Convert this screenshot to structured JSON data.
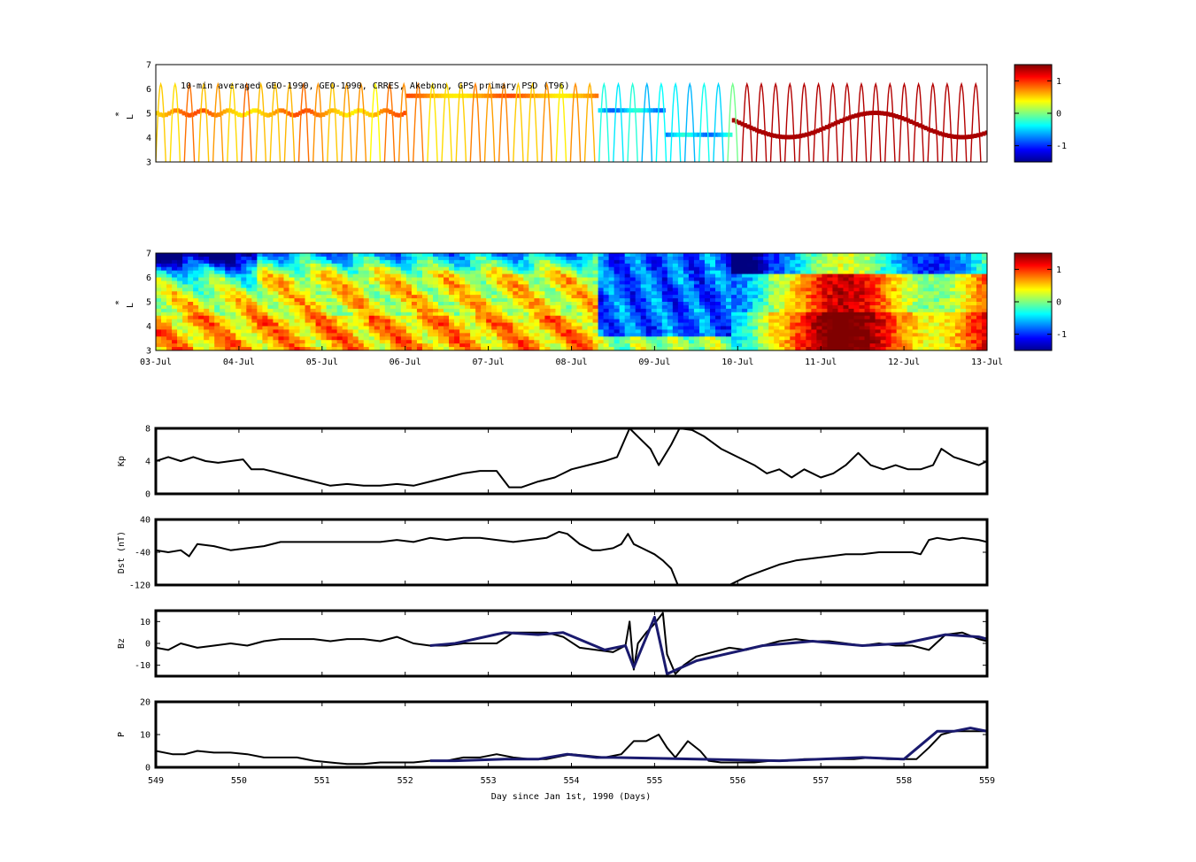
{
  "figure": {
    "annotation": "10-min averaged GEO-1990, GEO-1990, CRRES, Akebono, GPS  primary PSD (T96)"
  },
  "chart_data": [
    {
      "type": "heatmap",
      "id": "psd-observed",
      "ylabel": "L*",
      "ylabel_main": "L",
      "ylabel_sup": "*",
      "ylim": [
        3,
        7
      ],
      "yticks": [
        "3",
        "4",
        "5",
        "6",
        "7"
      ],
      "xlim": [
        549,
        559
      ],
      "colorbar": {
        "range": [
          -1.5,
          1.5
        ],
        "ticks": [
          "1",
          "0",
          "-1"
        ],
        "tick_values": [
          1,
          0,
          -1
        ]
      }
    },
    {
      "type": "heatmap",
      "id": "psd-reanalysis",
      "ylabel": "L*",
      "ylabel_main": "L",
      "ylabel_sup": "*",
      "ylim": [
        3,
        7
      ],
      "yticks": [
        "3",
        "4",
        "5",
        "6",
        "7"
      ],
      "xlim": [
        549,
        559
      ],
      "xticks": [
        "03-Jul",
        "04-Jul",
        "05-Jul",
        "06-Jul",
        "07-Jul",
        "08-Jul",
        "09-Jul",
        "10-Jul",
        "11-Jul",
        "12-Jul",
        "13-Jul"
      ],
      "colorbar": {
        "range": [
          -1.5,
          1.5
        ],
        "ticks": [
          "1",
          "0",
          "-1"
        ],
        "tick_values": [
          1,
          0,
          -1
        ]
      }
    },
    {
      "type": "line",
      "id": "kp",
      "ylabel": "Kp",
      "ylim": [
        0,
        8
      ],
      "yticks": [
        "0",
        "4",
        "8"
      ],
      "ytick_values": [
        0,
        4,
        8
      ],
      "xlim": [
        549,
        559
      ],
      "series": [
        {
          "color": "#000000",
          "x": [
            549.0,
            549.15,
            549.3,
            549.45,
            549.6,
            549.75,
            549.9,
            550.05,
            550.15,
            550.3,
            550.5,
            550.7,
            550.9,
            551.1,
            551.3,
            551.5,
            551.7,
            551.9,
            552.1,
            552.3,
            552.5,
            552.7,
            552.9,
            553.1,
            553.25,
            553.4,
            553.6,
            553.8,
            554.0,
            554.2,
            554.4,
            554.55,
            554.7,
            554.8,
            554.95,
            555.05,
            555.2,
            555.3,
            555.45,
            555.6,
            555.8,
            556.0,
            556.2,
            556.35,
            556.5,
            556.65,
            556.8,
            557.0,
            557.15,
            557.3,
            557.45,
            557.6,
            557.75,
            557.9,
            558.05,
            558.2,
            558.35,
            558.45,
            558.6,
            558.75,
            558.9,
            559.0
          ],
          "y": [
            4.0,
            4.5,
            4.0,
            4.5,
            4.0,
            3.8,
            4.0,
            4.2,
            3.0,
            3.0,
            2.5,
            2.0,
            1.5,
            1.0,
            1.2,
            1.0,
            1.0,
            1.2,
            1.0,
            1.5,
            2.0,
            2.5,
            2.8,
            2.8,
            0.8,
            0.8,
            1.5,
            2.0,
            3.0,
            3.5,
            4.0,
            4.5,
            8.0,
            7.0,
            5.5,
            3.5,
            6.0,
            8.0,
            7.8,
            7.0,
            5.5,
            4.5,
            3.5,
            2.5,
            3.0,
            2.0,
            3.0,
            2.0,
            2.5,
            3.5,
            5.0,
            3.5,
            3.0,
            3.5,
            3.0,
            3.0,
            3.5,
            5.5,
            4.5,
            4.0,
            3.5,
            4.0
          ]
        }
      ]
    },
    {
      "type": "line",
      "id": "dst",
      "ylabel": "Dst (nT)",
      "ylim": [
        -120,
        40
      ],
      "yticks": [
        "-120",
        "-40",
        "40"
      ],
      "ytick_values": [
        -120,
        -40,
        40
      ],
      "xlim": [
        549,
        559
      ],
      "series": [
        {
          "color": "#000000",
          "x": [
            549.0,
            549.15,
            549.3,
            549.4,
            549.5,
            549.7,
            549.9,
            550.1,
            550.3,
            550.5,
            550.7,
            550.9,
            551.1,
            551.3,
            551.5,
            551.7,
            551.9,
            552.1,
            552.3,
            552.5,
            552.7,
            552.9,
            553.1,
            553.3,
            553.5,
            553.7,
            553.85,
            553.95,
            554.1,
            554.25,
            554.35,
            554.5,
            554.6,
            554.68,
            554.75,
            554.85,
            555.0,
            555.1,
            555.2,
            555.28,
            555.5,
            555.7,
            555.9,
            556.1,
            556.3,
            556.5,
            556.7,
            556.9,
            557.1,
            557.3,
            557.5,
            557.7,
            557.9,
            558.1,
            558.2,
            558.3,
            558.4,
            558.55,
            558.7,
            558.9,
            559.0
          ],
          "y": [
            -35,
            -40,
            -35,
            -50,
            -20,
            -25,
            -35,
            -30,
            -25,
            -15,
            -15,
            -15,
            -15,
            -15,
            -15,
            -15,
            -10,
            -15,
            -5,
            -10,
            -5,
            -5,
            -10,
            -15,
            -10,
            -5,
            10,
            5,
            -20,
            -35,
            -35,
            -30,
            -20,
            5,
            -20,
            -30,
            -45,
            -60,
            -80,
            -120,
            -120,
            -120,
            -120,
            -100,
            -85,
            -70,
            -60,
            -55,
            -50,
            -45,
            -45,
            -40,
            -40,
            -40,
            -45,
            -10,
            -5,
            -10,
            -5,
            -10,
            -15
          ]
        }
      ]
    },
    {
      "type": "line",
      "id": "bz",
      "ylabel": "Bz",
      "ylim": [
        -15,
        15
      ],
      "yticks": [
        "-10",
        "0",
        "10"
      ],
      "ytick_values": [
        -10,
        0,
        10
      ],
      "xlim": [
        549,
        559
      ],
      "series": [
        {
          "color": "#000000",
          "x": [
            549.0,
            549.15,
            549.3,
            549.5,
            549.7,
            549.9,
            550.1,
            550.3,
            550.5,
            550.7,
            550.9,
            551.1,
            551.3,
            551.5,
            551.7,
            551.9,
            552.1,
            552.3,
            552.5,
            552.7,
            552.9,
            553.1,
            553.3,
            553.5,
            553.7,
            553.9,
            554.1,
            554.3,
            554.5,
            554.65,
            554.7,
            554.75,
            554.8,
            554.9,
            555.0,
            555.1,
            555.15,
            555.25,
            555.35,
            555.5,
            555.7,
            555.9,
            556.1,
            556.3,
            556.5,
            556.7,
            556.9,
            557.1,
            557.3,
            557.5,
            557.7,
            557.9,
            558.1,
            558.3,
            558.5,
            558.7,
            558.9,
            559.0
          ],
          "y": [
            -2,
            -3,
            0,
            -2,
            -1,
            0,
            -1,
            1,
            2,
            2,
            2,
            1,
            2,
            2,
            1,
            3,
            0,
            -1,
            -1,
            0,
            0,
            0,
            5,
            5,
            5,
            3,
            -2,
            -3,
            -4,
            -1,
            10,
            -12,
            0,
            5,
            9,
            14,
            -5,
            -14,
            -10,
            -6,
            -4,
            -2,
            -3,
            -1,
            1,
            2,
            1,
            1,
            0,
            -1,
            0,
            -1,
            -1,
            -3,
            4,
            5,
            2,
            1
          ]
        },
        {
          "color": "#1a1a6e",
          "x": [
            552.3,
            552.6,
            553.2,
            553.6,
            553.9,
            554.4,
            554.65,
            554.75,
            555.0,
            555.15,
            555.5,
            556.3,
            556.9,
            557.5,
            558.0,
            558.5,
            558.9,
            559.0
          ],
          "y": [
            -1,
            0,
            5,
            4,
            5,
            -3,
            -1,
            -11,
            12,
            -14,
            -8,
            -1,
            1,
            -1,
            0,
            4,
            3,
            2
          ]
        }
      ]
    },
    {
      "type": "line",
      "id": "p",
      "ylabel": "P",
      "ylim": [
        0,
        20
      ],
      "yticks": [
        "0",
        "10",
        "20"
      ],
      "ytick_values": [
        0,
        10,
        20
      ],
      "xlim": [
        549,
        559
      ],
      "xlabel": "Day since Jan 1st, 1990 (Days)",
      "xticks": [
        "549",
        "550",
        "551",
        "552",
        "553",
        "554",
        "555",
        "556",
        "557",
        "558",
        "559"
      ],
      "xtick_values": [
        549,
        550,
        551,
        552,
        553,
        554,
        555,
        556,
        557,
        558,
        559
      ],
      "series": [
        {
          "color": "#000000",
          "x": [
            549.0,
            549.2,
            549.35,
            549.5,
            549.7,
            549.9,
            550.1,
            550.3,
            550.5,
            550.7,
            550.9,
            551.1,
            551.3,
            551.5,
            551.7,
            551.9,
            552.1,
            552.3,
            552.5,
            552.7,
            552.9,
            553.1,
            553.3,
            553.5,
            553.7,
            553.9,
            554.0,
            554.2,
            554.4,
            554.6,
            554.75,
            554.9,
            555.05,
            555.15,
            555.25,
            555.4,
            555.55,
            555.65,
            555.8,
            556.0,
            556.2,
            556.4,
            556.6,
            556.8,
            557.0,
            557.2,
            557.4,
            557.6,
            557.8,
            558.0,
            558.15,
            558.3,
            558.45,
            558.6,
            558.8,
            559.0
          ],
          "y": [
            5,
            4,
            4,
            5,
            4.5,
            4.5,
            4,
            3,
            3,
            3,
            2,
            1.5,
            1,
            1,
            1.5,
            1.5,
            1.5,
            2,
            2,
            3,
            3,
            4,
            3,
            2.5,
            2.5,
            3.5,
            4,
            3.5,
            3,
            4,
            8,
            8,
            10,
            6,
            3,
            8,
            5,
            2,
            1.5,
            1.5,
            1.5,
            2,
            2,
            2.5,
            2.5,
            2.5,
            2.5,
            3,
            2.5,
            2.5,
            2.5,
            6,
            10,
            11,
            11,
            11
          ]
        },
        {
          "color": "#1a1a6e",
          "x": [
            552.3,
            552.6,
            553.2,
            553.6,
            553.95,
            554.3,
            554.5,
            556.5,
            557.0,
            557.5,
            558.0,
            558.4,
            558.6,
            558.8,
            559.0
          ],
          "y": [
            2,
            2,
            2.5,
            2.5,
            4,
            3,
            3,
            2,
            2.5,
            3,
            2.5,
            11,
            11,
            12,
            11
          ]
        }
      ]
    }
  ]
}
